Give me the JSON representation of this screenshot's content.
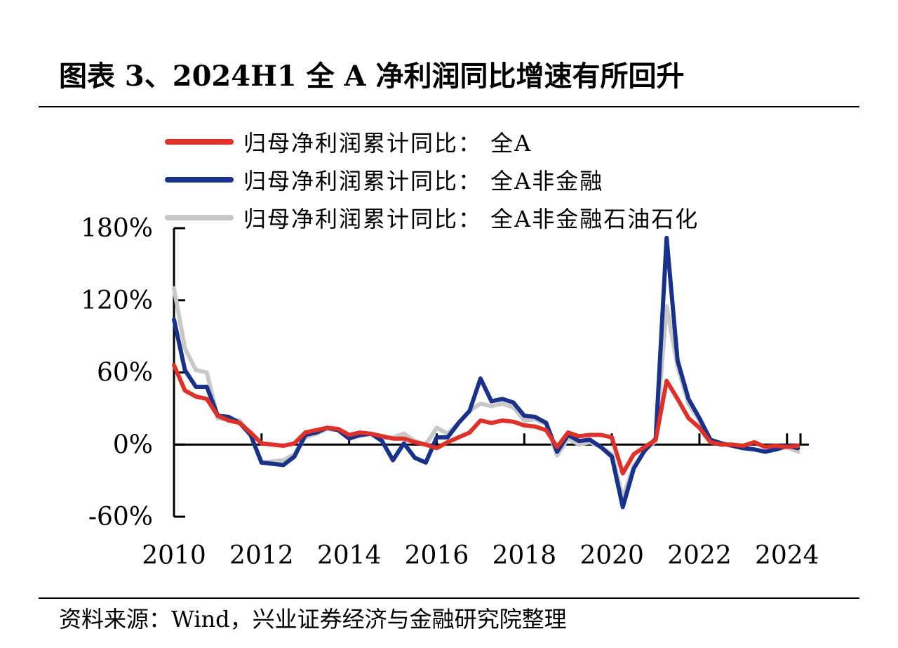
{
  "title": "图表 3、2024H1 全 A 净利润同比增速有所回升",
  "footer": "资料来源：Wind，兴业证券经济与金融研究院整理",
  "chart_data": {
    "type": "line",
    "title": "",
    "xlabel": "",
    "ylabel": "",
    "x_ticks": [
      "2010",
      "2012",
      "2014",
      "2016",
      "2018",
      "2020",
      "2022",
      "2024"
    ],
    "y_ticks": [
      "180%",
      "120%",
      "60%",
      "0%",
      "-60%"
    ],
    "y_tick_values": [
      180,
      120,
      60,
      0,
      -60
    ],
    "xlim": [
      2010,
      2024.5
    ],
    "ylim": [
      -60,
      180
    ],
    "grid": false,
    "legend_position": "top",
    "x": [
      2010.0,
      2010.25,
      2010.5,
      2010.75,
      2011.0,
      2011.25,
      2011.5,
      2011.75,
      2012.0,
      2012.25,
      2012.5,
      2012.75,
      2013.0,
      2013.25,
      2013.5,
      2013.75,
      2014.0,
      2014.25,
      2014.5,
      2014.75,
      2015.0,
      2015.25,
      2015.5,
      2015.75,
      2016.0,
      2016.25,
      2016.5,
      2016.75,
      2017.0,
      2017.25,
      2017.5,
      2017.75,
      2018.0,
      2018.25,
      2018.5,
      2018.75,
      2019.0,
      2019.25,
      2019.5,
      2019.75,
      2020.0,
      2020.25,
      2020.5,
      2020.75,
      2021.0,
      2021.25,
      2021.5,
      2021.75,
      2022.0,
      2022.25,
      2022.5,
      2022.75,
      2023.0,
      2023.25,
      2023.5,
      2023.75,
      2024.0,
      2024.25
    ],
    "series": [
      {
        "name": "归母净利润累计同比：全A",
        "color": "#e03128",
        "values": [
          66,
          45,
          40,
          38,
          24,
          20,
          18,
          10,
          1,
          0,
          -1,
          1,
          10,
          12,
          14,
          13,
          8,
          10,
          9,
          7,
          5,
          5,
          2,
          0,
          -3,
          2,
          6,
          10,
          20,
          18,
          20,
          19,
          16,
          15,
          12,
          -2,
          10,
          7,
          8,
          8,
          6,
          -24,
          -8,
          -2,
          4,
          53,
          38,
          22,
          14,
          2,
          0,
          0,
          -1,
          2,
          -2,
          -1,
          -2,
          -1
        ]
      },
      {
        "name": "归母净利润累计同比：全A非金融",
        "color": "#18318a",
        "values": [
          104,
          62,
          48,
          48,
          24,
          23,
          18,
          8,
          -15,
          -16,
          -17,
          -10,
          8,
          10,
          14,
          12,
          5,
          8,
          9,
          3,
          -13,
          1,
          -11,
          -15,
          6,
          6,
          18,
          28,
          55,
          36,
          38,
          35,
          24,
          23,
          18,
          -6,
          8,
          3,
          4,
          -2,
          -10,
          -52,
          -20,
          -5,
          5,
          172,
          70,
          38,
          22,
          4,
          1,
          -1,
          -3,
          -4,
          -6,
          -4,
          -1,
          -3
        ]
      },
      {
        "name": "归母净利润累计同比：全A非金融石油石化",
        "color": "#c8c8c8",
        "values": [
          130,
          80,
          62,
          60,
          22,
          21,
          20,
          8,
          -15,
          -14,
          -13,
          -8,
          6,
          9,
          13,
          12,
          6,
          7,
          9,
          5,
          6,
          9,
          3,
          0,
          14,
          9,
          18,
          28,
          34,
          32,
          34,
          31,
          20,
          21,
          17,
          -9,
          5,
          0,
          2,
          -2,
          -8,
          -44,
          -18,
          -5,
          3,
          115,
          65,
          34,
          20,
          2,
          0,
          0,
          -2,
          -4,
          -6,
          -4,
          -2,
          -6
        ]
      }
    ]
  },
  "legend": [
    {
      "label": "归母净利润累计同比：  全A",
      "color": "#e03128"
    },
    {
      "label": "归母净利润累计同比：  全A非金融",
      "color": "#18318a"
    },
    {
      "label": "归母净利润累计同比：  全A非金融石油石化",
      "color": "#c8c8c8"
    }
  ]
}
